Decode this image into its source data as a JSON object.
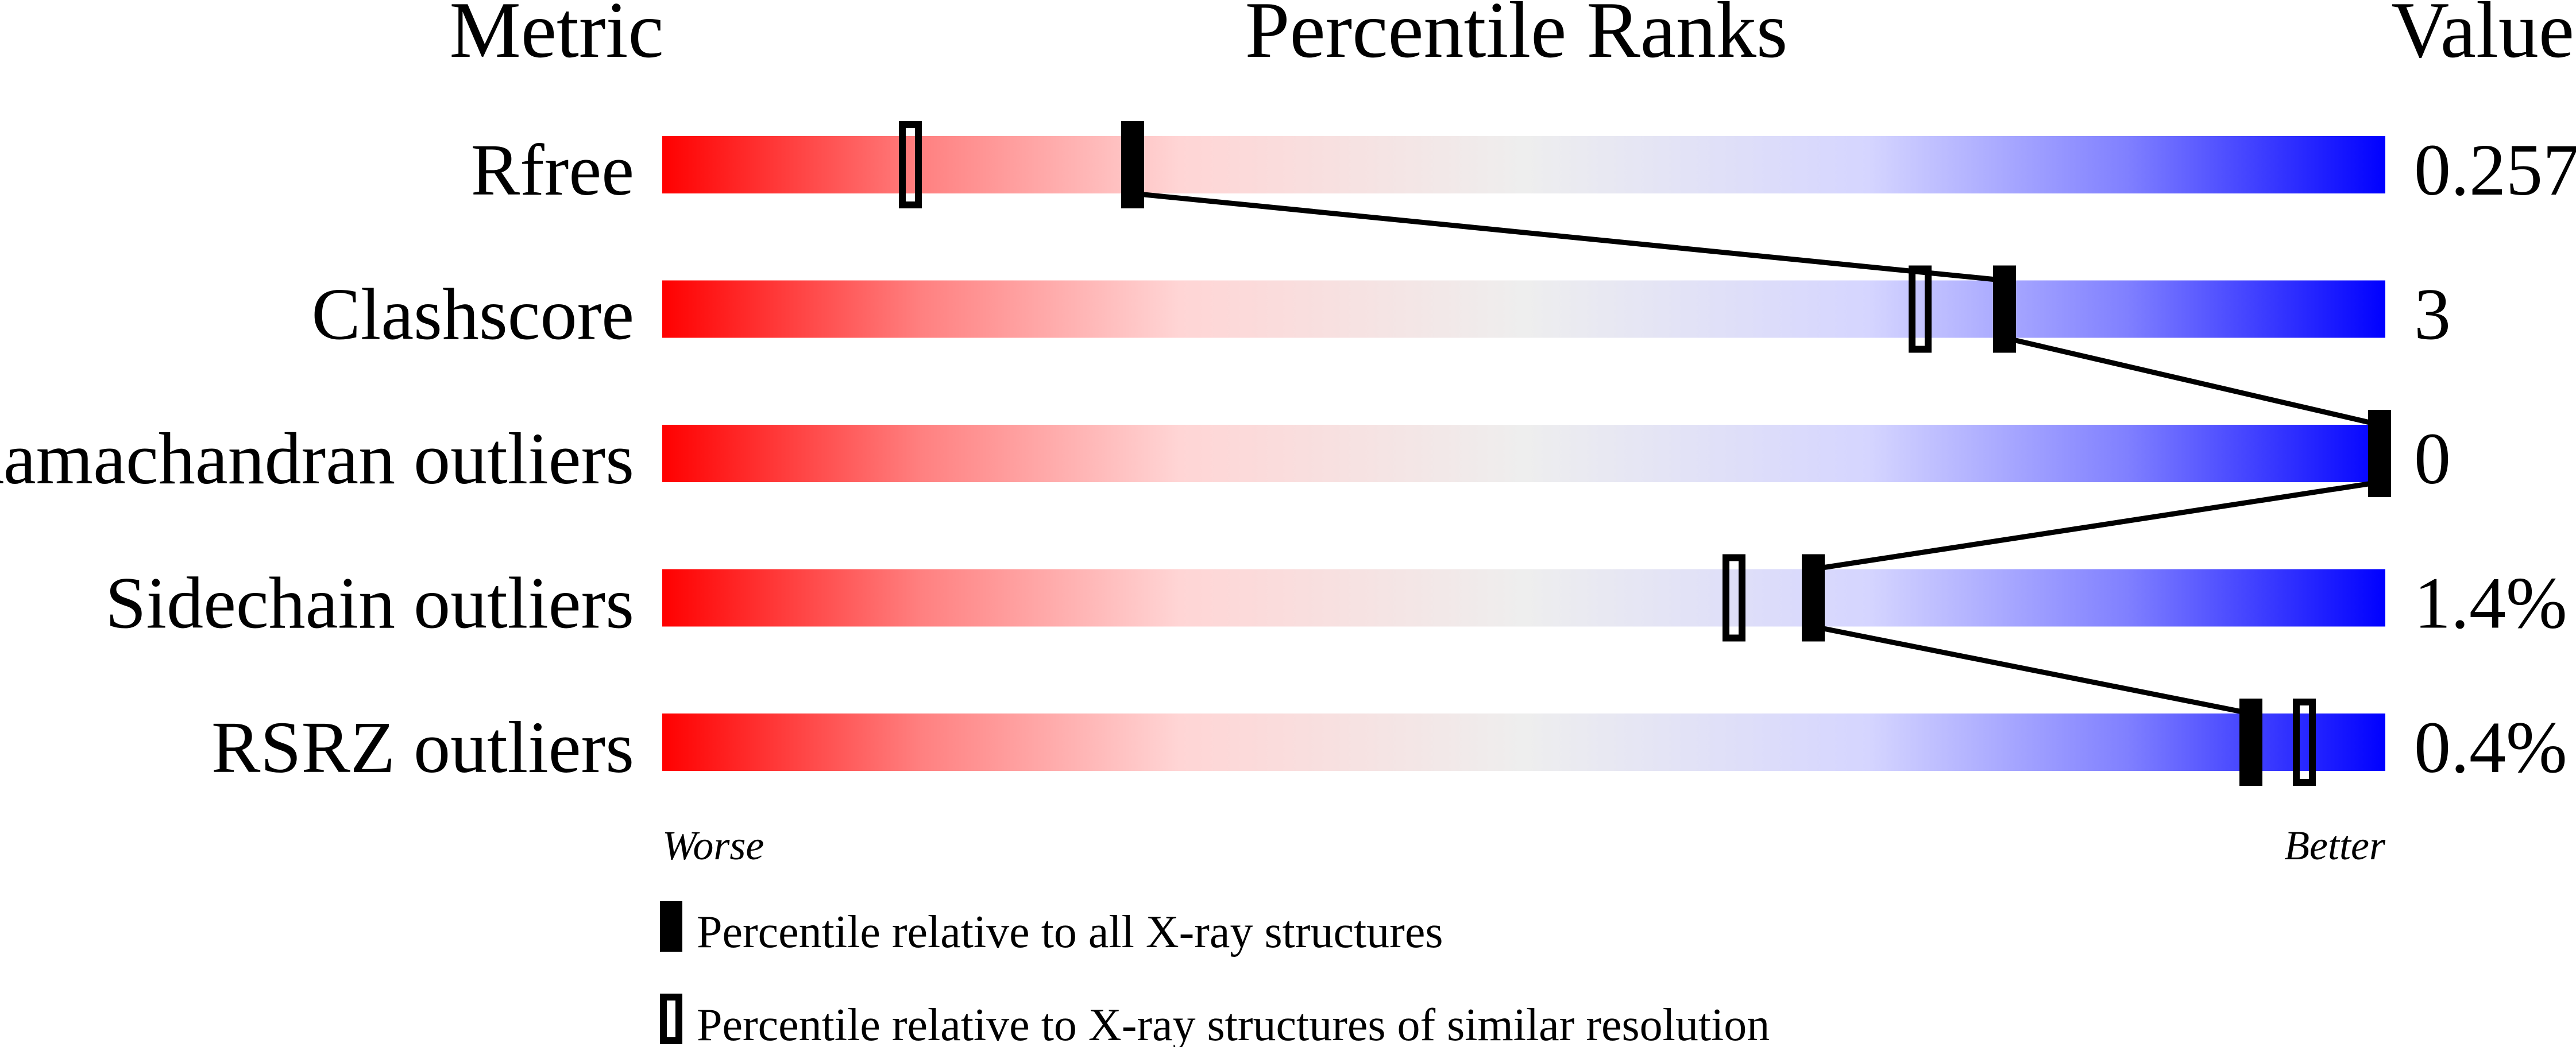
{
  "chart_data": {
    "type": "percentile-bar",
    "headers": {
      "metric": "Metric",
      "ranks": "Percentile Ranks",
      "value": "Value"
    },
    "xlim": [
      0,
      100
    ],
    "axis_labels": {
      "left": "Worse",
      "right": "Better"
    },
    "gradient_colors": [
      "#ff0000",
      "#eeeeee",
      "#0000ff"
    ],
    "metrics": [
      {
        "name": "Rfree",
        "value": "0.257",
        "percentile_all": 27.3,
        "percentile_similar": 14.4
      },
      {
        "name": "Clashscore",
        "value": "3",
        "percentile_all": 77.9,
        "percentile_similar": 73.0
      },
      {
        "name": "Ramachandran outliers",
        "value": "0",
        "percentile_all": 100,
        "percentile_similar": null
      },
      {
        "name": "Sidechain outliers",
        "value": "1.4%",
        "percentile_all": 66.8,
        "percentile_similar": 62.2
      },
      {
        "name": "RSRZ outliers",
        "value": "0.4%",
        "percentile_all": 92.2,
        "percentile_similar": 95.3
      }
    ],
    "legend": [
      {
        "marker": "filled",
        "label": "Percentile relative to all X-ray structures"
      },
      {
        "marker": "open",
        "label": "Percentile relative to X-ray structures of similar resolution"
      }
    ]
  }
}
